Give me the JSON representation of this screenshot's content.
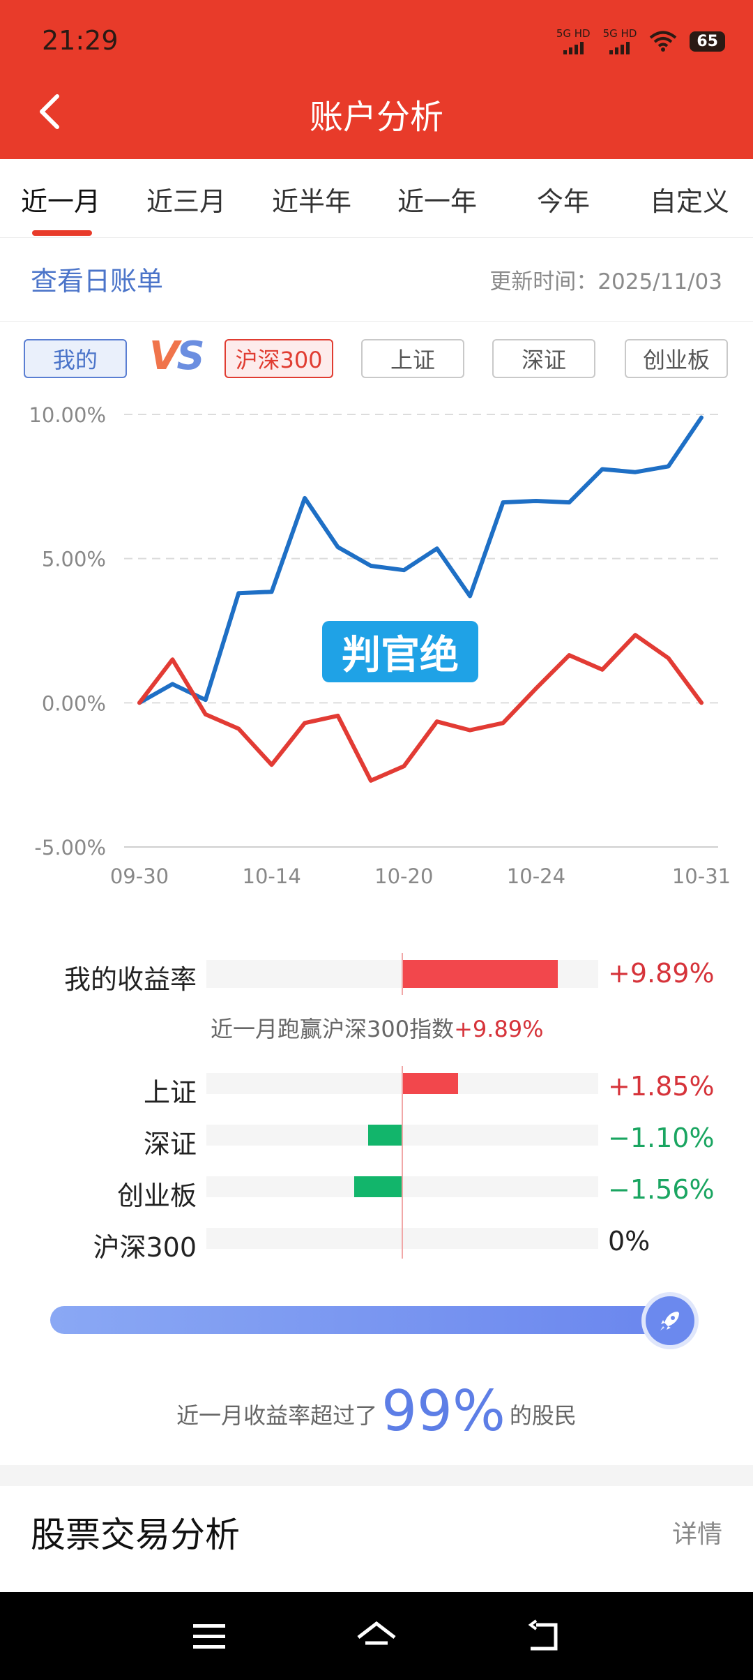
{
  "status": {
    "time": "21:29",
    "signal1": "5G HD",
    "signal2": "5G HD",
    "battery": "65"
  },
  "header": {
    "title": "账户分析"
  },
  "tabs": [
    {
      "label": "近一月",
      "active": true
    },
    {
      "label": "近三月"
    },
    {
      "label": "近半年"
    },
    {
      "label": "近一年"
    },
    {
      "label": "今年"
    },
    {
      "label": "自定义"
    }
  ],
  "info": {
    "view_bill": "查看日账单",
    "update_time": "更新时间：2025/11/03"
  },
  "compare": {
    "me": "我的",
    "vs_v": "V",
    "vs_s": "S",
    "options": [
      "沪深300",
      "上证",
      "深证",
      "创业板"
    ],
    "selected": "沪深300"
  },
  "watermark": "判官绝",
  "chart_data": {
    "type": "line",
    "x": [
      "09-30",
      "10-09",
      "10-10",
      "10-13",
      "10-14",
      "10-15",
      "10-16",
      "10-17",
      "10-20",
      "10-21",
      "10-22",
      "10-23",
      "10-24",
      "10-27",
      "10-28",
      "10-29",
      "10-30",
      "10-31"
    ],
    "xticks": [
      "09-30",
      "10-14",
      "10-20",
      "10-24",
      "10-31"
    ],
    "yticks": [
      "10.00%",
      "5.00%",
      "0.00%",
      "-5.00%"
    ],
    "ylim": [
      -5,
      10
    ],
    "grid": true,
    "series": [
      {
        "color": "#1e6fc5",
        "values": [
          0,
          0.65,
          0.1,
          3.8,
          3.85,
          7.1,
          5.4,
          4.75,
          4.6,
          5.35,
          3.7,
          6.95,
          7.0,
          6.95,
          8.1,
          8.0,
          8.2,
          9.89
        ]
      },
      {
        "color": "#e23b34",
        "values": [
          0,
          1.5,
          -0.4,
          -0.9,
          -2.15,
          -0.7,
          -0.45,
          -2.7,
          -2.2,
          -0.65,
          -0.95,
          -0.7,
          0.5,
          1.65,
          1.15,
          2.35,
          1.55,
          0
        ]
      }
    ]
  },
  "returns": {
    "mine": {
      "label": "我的收益率",
      "value": "+9.89%",
      "pct": 9.89
    },
    "beat_prefix": "近一月跑赢沪深300指数",
    "beat_value": "+9.89%",
    "indices": [
      {
        "label": "上证",
        "value": "+1.85%",
        "pct": 1.85
      },
      {
        "label": "深证",
        "value": "−1.10%",
        "pct": -1.1
      },
      {
        "label": "创业板",
        "value": "−1.56%",
        "pct": -1.56
      },
      {
        "label": "沪深300",
        "value": "0%",
        "pct": 0
      }
    ]
  },
  "percentile": {
    "prefix": "近一月收益率超过了",
    "value": "99%",
    "suffix": "的股民",
    "fraction": 0.99
  },
  "section": {
    "title": "股票交易分析",
    "detail": "详情"
  },
  "nav": {
    "menu": "menu-icon",
    "home": "home-icon",
    "back": "back-icon"
  }
}
